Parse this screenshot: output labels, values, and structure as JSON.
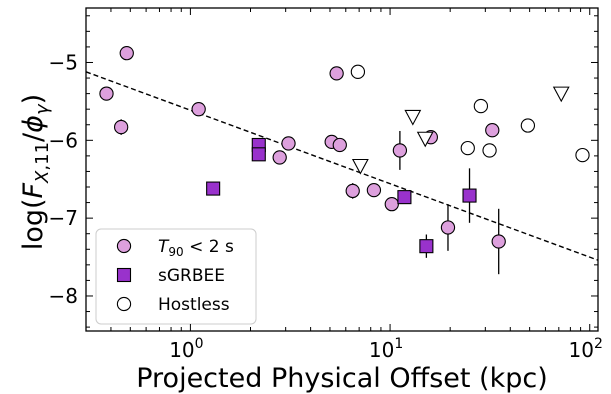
{
  "chart_data": {
    "type": "scatter",
    "xscale": "log",
    "xlim": [
      0.3,
      110
    ],
    "ylim": [
      -8.45,
      -4.3
    ],
    "xlabel": "Projected Physical Offset (kpc)",
    "ylabel": "log(F_{X,11}/φ_γ)",
    "xticks": [
      1,
      10,
      100
    ],
    "xtick_labels": [
      "10^0",
      "10^1",
      "10^2"
    ],
    "yticks": [
      -8,
      -7,
      -6,
      -5
    ],
    "ytick_labels": [
      "−8",
      "−7",
      "−6",
      "−5"
    ],
    "grid": false,
    "legend_position": "lower-left",
    "series": [
      {
        "name": "T_{90} < 2 s",
        "legend_label": "T90 < 2 s",
        "marker": "circle",
        "color": "#dda0dd",
        "points": [
          {
            "x": 0.38,
            "y": -5.4
          },
          {
            "x": 0.45,
            "y": -5.83
          },
          {
            "x": 0.48,
            "y": -4.88
          },
          {
            "x": 1.1,
            "y": -5.6
          },
          {
            "x": 2.8,
            "y": -6.22
          },
          {
            "x": 3.1,
            "y": -6.04
          },
          {
            "x": 5.1,
            "y": -6.02
          },
          {
            "x": 5.4,
            "y": -5.14
          },
          {
            "x": 5.6,
            "y": -6.06
          },
          {
            "x": 6.5,
            "y": -6.65
          },
          {
            "x": 8.3,
            "y": -6.64
          },
          {
            "x": 10.2,
            "y": -6.82
          },
          {
            "x": 11.2,
            "y": -6.13
          },
          {
            "x": 16.0,
            "y": -5.96
          },
          {
            "x": 19.5,
            "y": -7.12
          },
          {
            "x": 32.5,
            "y": -5.87
          },
          {
            "x": 35.0,
            "y": -7.3
          }
        ],
        "yerr": [
          null,
          0.1,
          null,
          null,
          0.08,
          null,
          null,
          null,
          null,
          0.1,
          null,
          0.08,
          0.25,
          null,
          0.3,
          null,
          0.42
        ]
      },
      {
        "name": "sGRBEE",
        "legend_label": "sGRBEE",
        "marker": "square",
        "color": "#9932cc",
        "points": [
          {
            "x": 1.3,
            "y": -6.62
          },
          {
            "x": 2.2,
            "y": -6.06
          },
          {
            "x": 2.2,
            "y": -6.18
          },
          {
            "x": 11.8,
            "y": -6.73
          },
          {
            "x": 15.2,
            "y": -7.36
          },
          {
            "x": 25.0,
            "y": -6.71
          }
        ],
        "yerr": [
          null,
          null,
          0.08,
          null,
          0.15,
          0.35
        ]
      },
      {
        "name": "Hostless",
        "legend_label": "Hostless",
        "marker": "circle-open",
        "color": "#ffffff",
        "points": [
          {
            "x": 6.9,
            "y": -5.12
          },
          {
            "x": 24.5,
            "y": -6.1
          },
          {
            "x": 28.5,
            "y": -5.56
          },
          {
            "x": 31.5,
            "y": -6.13
          },
          {
            "x": 49.0,
            "y": -5.81
          },
          {
            "x": 92.0,
            "y": -6.19
          }
        ]
      },
      {
        "name": "Upper limits",
        "marker": "triangle-down-open",
        "color": "#ffffff",
        "points": [
          {
            "x": 7.1,
            "y": -6.33
          },
          {
            "x": 13.0,
            "y": -5.7
          },
          {
            "x": 15.0,
            "y": -5.98
          },
          {
            "x": 72.0,
            "y": -5.4
          }
        ]
      }
    ],
    "fit_line": {
      "style": "dashed",
      "x": [
        0.3,
        110
      ],
      "y": [
        -5.12,
        -7.54
      ]
    }
  }
}
